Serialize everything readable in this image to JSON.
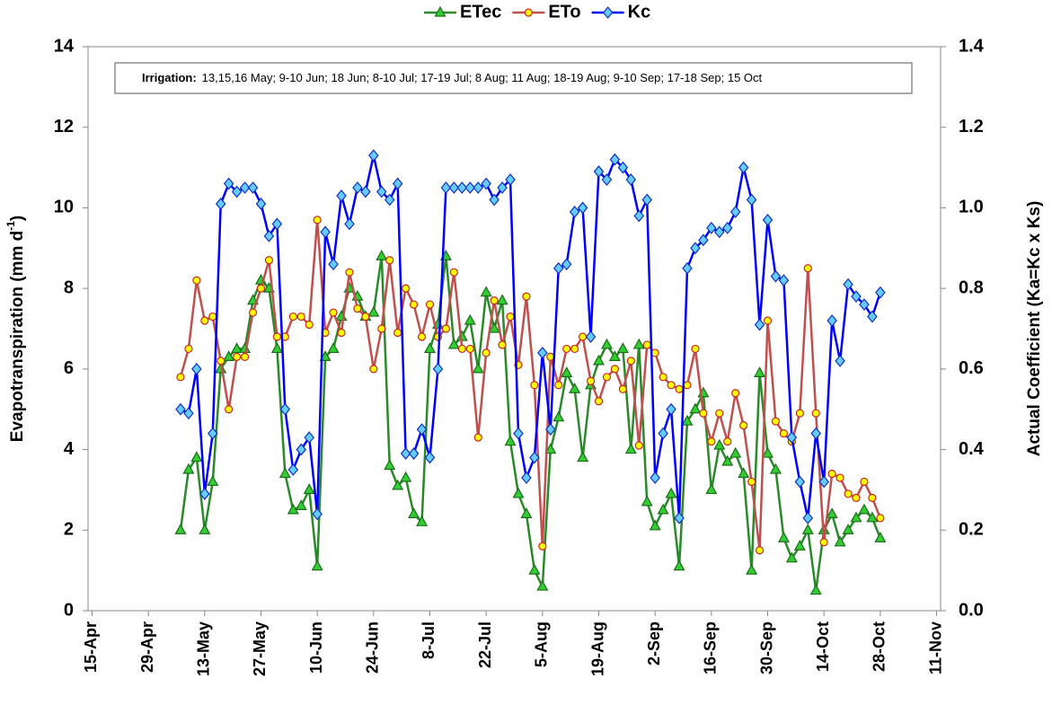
{
  "chart_data": {
    "type": "line",
    "legend": "top",
    "annotation": {
      "label": "Irrigation:",
      "text": "13,15,16 May; 9-10 Jun; 18 Jun; 8-10 Jul; 17-19 Jul; 8 Aug; 11 Aug; 18-19 Aug; 9-10 Sep; 17-18 Sep; 15 Oct"
    },
    "ylabel_parts": [
      "Evapotranspiration (mm d",
      "-1",
      ")"
    ],
    "y2label": "Actual Coefficient (Ka=Kc x Ks)",
    "x": [
      "7-May",
      "9-May",
      "11-May",
      "13-May",
      "15-May",
      "17-May",
      "19-May",
      "21-May",
      "23-May",
      "25-May",
      "27-May",
      "29-May",
      "31-May",
      "2-Jun",
      "4-Jun",
      "6-Jun",
      "8-Jun",
      "10-Jun",
      "12-Jun",
      "14-Jun",
      "16-Jun",
      "18-Jun",
      "20-Jun",
      "22-Jun",
      "24-Jun",
      "26-Jun",
      "28-Jun",
      "30-Jun",
      "2-Jul",
      "4-Jul",
      "6-Jul",
      "8-Jul",
      "10-Jul",
      "12-Jul",
      "14-Jul",
      "16-Jul",
      "18-Jul",
      "20-Jul",
      "22-Jul",
      "24-Jul",
      "26-Jul",
      "28-Jul",
      "30-Jul",
      "1-Aug",
      "3-Aug",
      "5-Aug",
      "7-Aug",
      "9-Aug",
      "11-Aug",
      "13-Aug",
      "15-Aug",
      "17-Aug",
      "19-Aug",
      "21-Aug",
      "23-Aug",
      "25-Aug",
      "27-Aug",
      "29-Aug",
      "31-Aug",
      "2-Sep",
      "4-Sep",
      "6-Sep",
      "8-Sep",
      "10-Sep",
      "12-Sep",
      "14-Sep",
      "16-Sep",
      "18-Sep",
      "20-Sep",
      "22-Sep",
      "24-Sep",
      "26-Sep",
      "28-Sep",
      "30-Sep",
      "2-Oct",
      "4-Oct",
      "6-Oct",
      "8-Oct",
      "10-Oct",
      "12-Oct",
      "14-Oct",
      "16-Oct",
      "18-Oct",
      "20-Oct",
      "22-Oct",
      "24-Oct",
      "26-Oct",
      "28-Oct"
    ],
    "xlim": [
      "14-Apr",
      "12-Nov"
    ],
    "xticks": [
      "15-Apr",
      "29-Apr",
      "13-May",
      "27-May",
      "10-Jun",
      "24-Jun",
      "8-Jul",
      "22-Jul",
      "5-Aug",
      "19-Aug",
      "2-Sep",
      "16-Sep",
      "30-Sep",
      "14-Oct",
      "28-Oct",
      "11-Nov"
    ],
    "ylim": [
      0,
      14
    ],
    "yticks": [
      0,
      2,
      4,
      6,
      8,
      10,
      12,
      14
    ],
    "y2lim": [
      0,
      1.4
    ],
    "y2ticks": [
      {
        "value": 0,
        "label": "0.0"
      },
      {
        "value": 0.2,
        "label": "0.2"
      },
      {
        "value": 0.4,
        "label": "0.4"
      },
      {
        "value": 0.6,
        "label": "0.6"
      },
      {
        "value": 0.8,
        "label": "0.8"
      },
      {
        "value": 1,
        "label": "1.0"
      },
      {
        "value": 1.2,
        "label": "1.2"
      },
      {
        "value": 1.4,
        "label": "1.4"
      }
    ],
    "series": [
      {
        "name": "ETec",
        "color": "#2a8a2a",
        "marker": "triangle",
        "marker_fill": "#33cc33",
        "values": [
          2.0,
          3.5,
          3.8,
          2.0,
          3.2,
          6.0,
          6.3,
          6.5,
          6.5,
          7.7,
          8.2,
          8.0,
          6.5,
          3.4,
          2.5,
          2.6,
          3.0,
          1.1,
          6.3,
          6.5,
          7.3,
          8.0,
          7.8,
          7.3,
          7.4,
          8.8,
          3.6,
          3.1,
          3.3,
          2.4,
          2.2,
          6.5,
          7.1,
          8.8,
          6.6,
          6.8,
          7.2,
          6.0,
          7.9,
          7.0,
          7.7,
          4.2,
          2.9,
          2.4,
          1.0,
          0.6,
          4.0,
          4.8,
          5.9,
          5.5,
          3.8,
          5.6,
          6.2,
          6.6,
          6.3,
          6.5,
          4.0,
          6.6,
          2.7,
          2.1,
          2.5,
          2.9,
          1.1,
          4.7,
          5.0,
          5.4,
          3.0,
          4.1,
          3.7,
          3.9,
          3.4,
          1.0,
          5.9,
          3.9,
          3.5,
          1.8,
          1.3,
          1.6,
          2.0,
          0.5,
          2.0,
          2.4,
          1.7,
          2.0,
          2.3,
          2.5,
          2.3,
          1.8
        ]
      },
      {
        "name": "ETo",
        "color": "#c0504d",
        "marker": "circle",
        "marker_fill": "#ffff00",
        "values": [
          5.8,
          6.5,
          8.2,
          7.2,
          7.3,
          6.2,
          5.0,
          6.3,
          6.3,
          7.4,
          8.0,
          8.7,
          6.8,
          6.8,
          7.3,
          7.3,
          7.1,
          9.7,
          6.9,
          7.4,
          6.9,
          8.4,
          7.5,
          7.3,
          6.0,
          7.0,
          8.7,
          6.9,
          8.0,
          7.6,
          6.8,
          7.6,
          6.8,
          7.0,
          8.4,
          6.5,
          6.5,
          4.3,
          6.4,
          7.7,
          6.6,
          7.3,
          6.1,
          7.8,
          5.6,
          1.6,
          6.3,
          5.6,
          6.5,
          6.5,
          6.8,
          5.7,
          5.2,
          5.8,
          6.0,
          5.5,
          6.2,
          4.1,
          6.6,
          6.4,
          5.8,
          5.6,
          5.5,
          5.6,
          6.5,
          4.9,
          4.2,
          4.9,
          4.2,
          5.4,
          4.6,
          3.2,
          1.5,
          7.2,
          4.7,
          4.4,
          4.2,
          4.9,
          8.5,
          4.9,
          1.7,
          3.4,
          3.3,
          2.9,
          2.8,
          3.2,
          2.8,
          2.3
        ]
      },
      {
        "name": "Kc",
        "color": "#0000ff",
        "marker": "diamond",
        "marker_fill": "#66ccff",
        "axis": "y2",
        "values": [
          0.5,
          0.49,
          0.6,
          0.29,
          0.44,
          1.01,
          1.06,
          1.04,
          1.05,
          1.05,
          1.01,
          0.93,
          0.96,
          0.5,
          0.35,
          0.4,
          0.43,
          0.24,
          0.94,
          0.86,
          1.03,
          0.96,
          1.05,
          1.04,
          1.13,
          1.04,
          1.02,
          1.06,
          0.39,
          0.39,
          0.45,
          0.38,
          0.6,
          1.05,
          1.05,
          1.05,
          1.05,
          1.05,
          1.06,
          1.02,
          1.05,
          1.07,
          0.44,
          0.33,
          0.38,
          0.64,
          0.45,
          0.85,
          0.86,
          0.99,
          1.0,
          0.68,
          1.09,
          1.07,
          1.12,
          1.1,
          1.07,
          0.98,
          1.02,
          0.33,
          0.44,
          0.5,
          0.23,
          0.85,
          0.9,
          0.92,
          0.95,
          0.94,
          0.95,
          0.99,
          1.1,
          1.02,
          0.71,
          0.97,
          0.83,
          0.82,
          0.43,
          0.32,
          0.23,
          0.44,
          0.32,
          0.72,
          0.62,
          0.81,
          0.78,
          0.76,
          0.73,
          0.79
        ]
      }
    ]
  }
}
